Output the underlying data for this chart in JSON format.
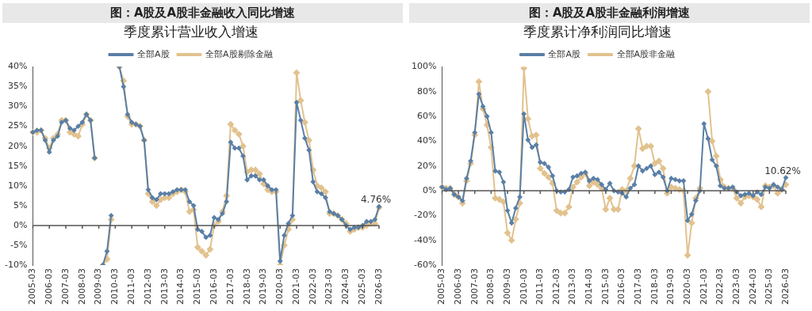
{
  "chart_data": [
    {
      "type": "line",
      "title": "图：A股及A股非金融收入同比增速",
      "subtitle": "季度累计营业收入增速",
      "legend": "top",
      "marker": "diamond",
      "line_style": "solid",
      "grid": false,
      "categories": [
        "2005-03",
        null,
        null,
        null,
        "2006-03",
        null,
        null,
        null,
        "2007-03",
        null,
        null,
        null,
        "2008-03",
        null,
        null,
        null,
        "2009-03",
        null,
        null,
        null,
        "2010-03",
        null,
        null,
        null,
        "2011-03",
        null,
        null,
        null,
        "2012-03",
        null,
        null,
        null,
        "2013-03",
        null,
        null,
        null,
        "2014-03",
        null,
        null,
        null,
        "2015-03",
        null,
        null,
        null,
        "2016-03",
        null,
        null,
        null,
        "2017-03",
        null,
        null,
        null,
        "2018-03",
        null,
        null,
        null,
        "2019-03",
        null,
        null,
        null,
        "2020-03",
        null,
        null,
        null,
        "2021-03",
        null,
        null,
        null,
        "2022-03",
        null,
        null,
        null,
        "2023-03",
        null,
        null,
        null,
        "2024-03",
        null,
        null,
        null,
        "2025-03",
        null,
        null,
        null,
        "2026-03"
      ],
      "ylim": [
        -10,
        40
      ],
      "yticks": [
        {
          "value": -10,
          "label": "-10%"
        },
        {
          "value": -5,
          "label": "-5%"
        },
        {
          "value": 0,
          "label": "0%"
        },
        {
          "value": 5,
          "label": "5%"
        },
        {
          "value": 10,
          "label": "10%"
        },
        {
          "value": 15,
          "label": "15%"
        },
        {
          "value": 20,
          "label": "20%"
        },
        {
          "value": 25,
          "label": "25%"
        },
        {
          "value": 30,
          "label": "30%"
        },
        {
          "value": 35,
          "label": "35%"
        },
        {
          "value": 40,
          "label": "40%"
        }
      ],
      "series": [
        {
          "name": "全部A股",
          "color": "#5a7fa6",
          "values": [
            23.5,
            24,
            24,
            21.5,
            18.5,
            21.5,
            22.5,
            26,
            26.5,
            24.5,
            24,
            25,
            26,
            28,
            26.5,
            17,
            null,
            -10,
            -6.5,
            2.5,
            null,
            40,
            35,
            28,
            26,
            25.5,
            25,
            21.5,
            9,
            7,
            6.5,
            8,
            8,
            8,
            8.5,
            9,
            9,
            9,
            6,
            5,
            -1,
            -1.5,
            -3,
            -2.5,
            2,
            1.5,
            3,
            6,
            21,
            19.5,
            19.5,
            17.5,
            11.5,
            12.5,
            12.5,
            11.5,
            11.5,
            10,
            9,
            9,
            -9,
            -2.5,
            0.5,
            2.5,
            31,
            26.5,
            22,
            19,
            11,
            8.5,
            8,
            7,
            3.5,
            3,
            2.5,
            1.5,
            0,
            -1,
            -0.5,
            -0.5,
            0,
            1,
            1,
            1.5,
            4.76
          ],
          "value_labels": [
            null,
            null,
            null,
            null,
            null,
            null,
            null,
            null,
            null,
            null,
            null,
            null,
            null,
            null,
            null,
            null,
            null,
            null,
            null,
            null,
            null,
            null,
            null,
            null,
            null,
            null,
            null,
            null,
            null,
            null,
            null,
            null,
            null,
            null,
            null,
            null,
            null,
            null,
            null,
            null,
            null,
            null,
            null,
            null,
            null,
            null,
            null,
            null,
            null,
            null,
            null,
            null,
            null,
            null,
            null,
            null,
            null,
            null,
            null,
            null,
            null,
            null,
            null,
            null,
            null,
            null,
            null,
            null,
            null,
            null,
            null,
            null,
            null,
            null,
            null,
            null,
            null,
            null,
            null,
            null,
            null,
            null,
            null,
            null,
            "4.76%"
          ]
        },
        {
          "name": "全部A股剔除金融",
          "color": "#e2c28e",
          "values": [
            23.5,
            23.5,
            24,
            22,
            19.5,
            22,
            23,
            26.5,
            26.5,
            23.5,
            23,
            22.5,
            25.5,
            28,
            26.5,
            17,
            null,
            -10,
            -8.5,
            1.5,
            null,
            40,
            36.5,
            27.5,
            25.5,
            25.5,
            25,
            21.5,
            8,
            6,
            5,
            6.5,
            7,
            7,
            8,
            8.5,
            9,
            8.5,
            3.5,
            4,
            -5.5,
            -6.5,
            -7.5,
            -6,
            0,
            1,
            3.5,
            7.5,
            25.5,
            24,
            23,
            20,
            13.5,
            14,
            14,
            13,
            10.5,
            9,
            8.5,
            8.5,
            -10,
            -5,
            -1,
            1.5,
            38.5,
            31.5,
            26,
            21.5,
            14,
            10,
            9.5,
            8.5,
            3,
            3,
            2.5,
            1.5,
            0.5,
            -1.5,
            -1,
            -0.5,
            -0.5,
            0,
            0.5,
            0.5,
            4.5
          ]
        }
      ],
      "ref_lines": [
        {
          "axis": "y",
          "value": 0,
          "color": "#555555"
        }
      ]
    },
    {
      "type": "line",
      "title": "图：A股及A股非金融利润增速",
      "subtitle": "季度累计净利润同比增速",
      "legend": "top",
      "marker": "diamond",
      "line_style": "solid",
      "grid": false,
      "categories": [
        "2005-03",
        null,
        null,
        null,
        "2006-03",
        null,
        null,
        null,
        "2007-03",
        null,
        null,
        null,
        "2008-03",
        null,
        null,
        null,
        "2009-03",
        null,
        null,
        null,
        "2010-03",
        null,
        null,
        null,
        "2011-03",
        null,
        null,
        null,
        "2012-03",
        null,
        null,
        null,
        "2013-03",
        null,
        null,
        null,
        "2014-03",
        null,
        null,
        null,
        "2015-03",
        null,
        null,
        null,
        "2016-03",
        null,
        null,
        null,
        "2017-03",
        null,
        null,
        null,
        "2018-03",
        null,
        null,
        null,
        "2019-03",
        null,
        null,
        null,
        "2020-03",
        null,
        null,
        null,
        "2021-03",
        null,
        null,
        null,
        "2022-03",
        null,
        null,
        null,
        "2023-03",
        null,
        null,
        null,
        "2024-03",
        null,
        null,
        null,
        "2025-03",
        null,
        null,
        null,
        "2026-03"
      ],
      "ylim": [
        -60,
        100
      ],
      "yticks": [
        {
          "value": -60,
          "label": "-60%"
        },
        {
          "value": -40,
          "label": "-40%"
        },
        {
          "value": -20,
          "label": "-20%"
        },
        {
          "value": 0,
          "label": "0%"
        },
        {
          "value": 20,
          "label": "20%"
        },
        {
          "value": 40,
          "label": "40%"
        },
        {
          "value": 60,
          "label": "60%"
        },
        {
          "value": 80,
          "label": "80%"
        },
        {
          "value": 100,
          "label": "100%"
        }
      ],
      "series": [
        {
          "name": "全部A股",
          "color": "#5a7fa6",
          "values": [
            3,
            1,
            2,
            -3,
            -5,
            -8,
            10,
            24,
            47,
            78,
            68,
            60,
            47,
            16,
            15,
            7,
            -16,
            -26,
            -14,
            -5,
            62,
            41,
            35,
            37,
            23,
            22,
            19,
            12,
            0,
            -1,
            -1,
            1,
            11,
            12,
            14,
            15,
            8,
            10,
            9,
            5,
            1,
            6,
            0,
            -1,
            -2,
            -5,
            2,
            5,
            20,
            16,
            18,
            20,
            13,
            15,
            11,
            0,
            10,
            9,
            8,
            8,
            -24,
            -19,
            -8,
            0,
            54,
            42,
            25,
            20,
            4,
            2,
            2,
            3,
            -1,
            -4,
            -3,
            -2,
            -4,
            -1,
            -3,
            3,
            2,
            5,
            3,
            1,
            10.62
          ],
          "value_labels": [
            null,
            null,
            null,
            null,
            null,
            null,
            null,
            null,
            null,
            null,
            null,
            null,
            null,
            null,
            null,
            null,
            null,
            null,
            null,
            null,
            null,
            null,
            null,
            null,
            null,
            null,
            null,
            null,
            null,
            null,
            null,
            null,
            null,
            null,
            null,
            null,
            null,
            null,
            null,
            null,
            null,
            null,
            null,
            null,
            null,
            null,
            null,
            null,
            null,
            null,
            null,
            null,
            null,
            null,
            null,
            null,
            null,
            null,
            null,
            null,
            null,
            null,
            null,
            null,
            null,
            null,
            null,
            null,
            null,
            null,
            null,
            null,
            null,
            null,
            null,
            null,
            null,
            null,
            null,
            null,
            null,
            null,
            null,
            null,
            "10.62%"
          ]
        },
        {
          "name": "全部A股非金融",
          "color": "#e2c28e",
          "values": [
            3,
            2,
            2,
            -3,
            -5,
            -10,
            8,
            22,
            45,
            88,
            66,
            53,
            35,
            -6,
            -7,
            -9,
            -34,
            -40,
            -23,
            -10,
            99,
            58,
            44,
            45,
            18,
            14,
            11,
            6,
            -16,
            -18,
            -18,
            -13,
            3,
            7,
            11,
            14,
            4,
            7,
            5,
            2,
            -15,
            -6,
            -15,
            -15,
            1,
            0,
            10,
            20,
            50,
            34,
            36,
            36,
            22,
            24,
            18,
            -2,
            3,
            2,
            1,
            0,
            -52,
            -26,
            -6,
            2,
            null,
            80,
            40,
            28,
            9,
            3,
            2,
            2,
            -6,
            -10,
            -5,
            -4,
            -5,
            -7,
            -13,
            4,
            3,
            4,
            -2,
            1,
            5
          ]
        }
      ],
      "ref_lines": [
        {
          "axis": "y",
          "value": 0,
          "color": "#555555"
        }
      ]
    }
  ]
}
